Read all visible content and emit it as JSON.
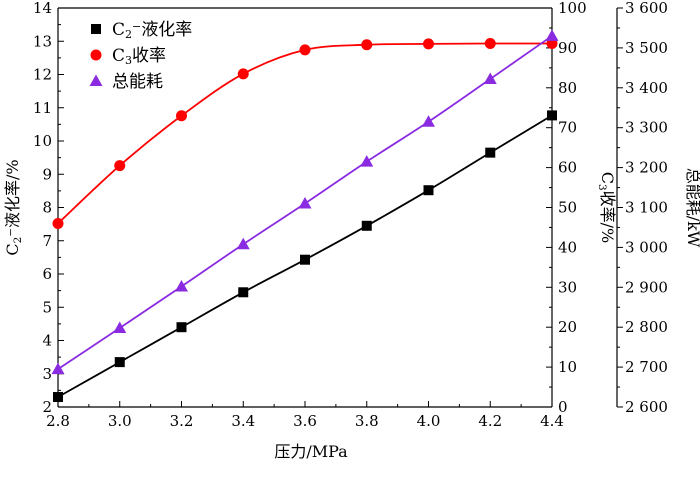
{
  "chart_data": {
    "type": "line",
    "xlabel": "压力/MPa",
    "x": [
      2.8,
      3.0,
      3.2,
      3.4,
      3.6,
      3.8,
      4.0,
      4.2,
      4.4
    ],
    "x_ticks": [
      "2.8",
      "3.0",
      "3.2",
      "3.4",
      "3.6",
      "3.8",
      "4.0",
      "4.2",
      "4.4"
    ],
    "xlim": [
      2.8,
      4.4
    ],
    "axes": {
      "left": {
        "label": "C₂⁻液化率/%",
        "ylim": [
          2,
          14
        ],
        "ticks": [
          "2",
          "3",
          "4",
          "5",
          "6",
          "7",
          "8",
          "9",
          "10",
          "11",
          "12",
          "13",
          "14"
        ]
      },
      "right1": {
        "label": "C₃收率/%",
        "ylim": [
          0,
          100
        ],
        "ticks": [
          "0",
          "10",
          "20",
          "30",
          "40",
          "50",
          "60",
          "70",
          "80",
          "90",
          "100"
        ]
      },
      "right2": {
        "label": "总能耗/kW",
        "ylim": [
          2600,
          3600
        ],
        "ticks": [
          "2 600",
          "2 700",
          "2 800",
          "2 900",
          "3 000",
          "3 100",
          "3 200",
          "3 300",
          "3 400",
          "3 500",
          "3 600"
        ]
      }
    },
    "series": [
      {
        "name": "C₂⁻液化率",
        "axis": "left",
        "marker": "square",
        "color": "#000000",
        "values": [
          2.3,
          3.35,
          4.4,
          5.45,
          6.43,
          7.45,
          8.52,
          9.65,
          10.77
        ]
      },
      {
        "name": "C₃收率",
        "axis": "right1",
        "marker": "circle",
        "color": "#ff0000",
        "values": [
          46,
          60.5,
          73,
          83.5,
          89.5,
          90.8,
          91.0,
          91.1,
          91.1
        ]
      },
      {
        "name": "总能耗",
        "axis": "right2",
        "marker": "triangle",
        "color": "#8a2be2",
        "values": [
          2695,
          2798,
          2902,
          3008,
          3110,
          3215,
          3315,
          3422,
          3530
        ]
      }
    ],
    "legend_position": "top-left",
    "grid": false
  }
}
